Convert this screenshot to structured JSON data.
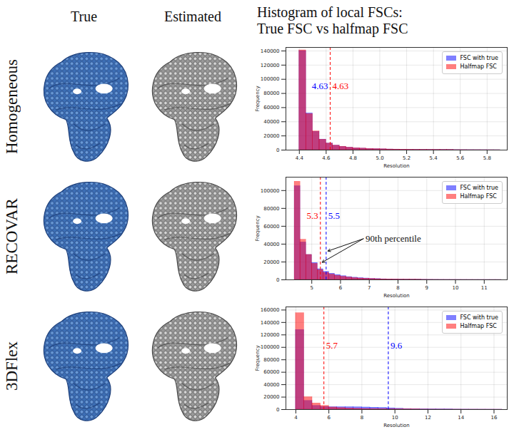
{
  "column_titles": [
    "True",
    "Estimated"
  ],
  "histogram_title": [
    "Histogram of local FSCs:",
    "True FSC vs halfmap FSC"
  ],
  "row_labels": [
    "Homogeneous",
    "RECOVAR",
    "3DFlex"
  ],
  "chart_data": [
    {
      "type": "histogram",
      "xlabel": "Resolution",
      "ylabel": "Frequency",
      "bins": [
        4.4,
        4.45,
        4.5,
        4.55,
        4.6,
        4.65,
        4.7,
        4.75,
        4.8,
        4.85,
        4.9,
        4.95,
        5.0,
        5.05,
        5.1,
        5.15,
        5.2,
        5.25,
        5.3,
        5.35,
        5.4,
        5.45,
        5.5,
        5.55,
        5.6,
        5.65,
        5.7,
        5.75,
        5.8,
        5.85,
        5.9
      ],
      "series": [
        {
          "name": "FSC with true",
          "color": "blue",
          "values": [
            140000,
            52000,
            26000,
            15000,
            9500,
            6500,
            4800,
            3600,
            2800,
            2200,
            1800,
            1500,
            1200,
            1000,
            850,
            700,
            600,
            500,
            420,
            360,
            300,
            250,
            210,
            170,
            140,
            110,
            90,
            70,
            50,
            30
          ]
        },
        {
          "name": "Halfmap FSC",
          "color": "red",
          "values": [
            141000,
            51000,
            26500,
            14800,
            9300,
            6400,
            4900,
            3600,
            2750,
            2250,
            1750,
            1500,
            1250,
            980,
            860,
            690,
            610,
            490,
            430,
            350,
            310,
            240,
            220,
            160,
            150,
            100,
            95,
            65,
            55,
            25
          ]
        }
      ],
      "percentile_lines": [
        {
          "series": "FSC with true",
          "value": 4.63
        },
        {
          "series": "Halfmap FSC",
          "value": 4.63
        }
      ],
      "xlim": [
        4.3,
        5.95
      ],
      "xticks": [
        4.4,
        4.6,
        4.8,
        {
          "value": 5,
          "label": "5.0"
        },
        5.2,
        5.4,
        5.6,
        5.8
      ],
      "ylim": [
        0,
        145000
      ],
      "yticks": [
        0,
        20000,
        40000,
        60000,
        80000,
        100000,
        120000,
        140000
      ],
      "grid": true,
      "legend": "upper right"
    },
    {
      "type": "histogram",
      "xlabel": "Resolution",
      "ylabel": "Frequency",
      "bins": [
        4.4,
        4.6,
        4.8,
        5.0,
        5.2,
        5.4,
        5.6,
        5.8,
        6.0,
        6.2,
        6.4,
        6.6,
        6.8,
        7.0,
        7.2,
        7.4,
        7.6,
        7.8,
        8.0,
        8.2,
        8.4,
        8.6,
        8.8,
        9.0,
        9.2,
        9.4,
        9.6,
        9.8,
        10.0,
        10.2,
        10.4,
        10.6,
        10.8,
        11.0,
        11.2,
        11.4,
        11.6
      ],
      "series": [
        {
          "name": "FSC with true",
          "color": "blue",
          "values": [
            105000,
            42000,
            28000,
            19000,
            12000,
            9000,
            7000,
            5500,
            4200,
            3200,
            2500,
            2000,
            1600,
            1200,
            950,
            750,
            600,
            480,
            380,
            300,
            240,
            190,
            150,
            120,
            90,
            70,
            55,
            45,
            35,
            28,
            22,
            17,
            12,
            9,
            6,
            4
          ]
        },
        {
          "name": "Halfmap FSC",
          "color": "red",
          "values": [
            110000,
            45000,
            28000,
            18000,
            11000,
            8000,
            6000,
            4500,
            3500,
            2700,
            2000,
            1600,
            1300,
            1000,
            800,
            650,
            500,
            400,
            300,
            250,
            200,
            160,
            130,
            100,
            80,
            60,
            50,
            40,
            30,
            25,
            20,
            15,
            10,
            8,
            5,
            3
          ]
        }
      ],
      "percentile_lines": [
        {
          "series": "FSC with true",
          "value": 5.5
        },
        {
          "series": "Halfmap FSC",
          "value": 5.3
        }
      ],
      "annotation": "90th percentile",
      "xlim": [
        4.1,
        11.8
      ],
      "xticks": [
        5,
        6,
        7,
        8,
        9,
        10,
        11
      ],
      "ylim": [
        0,
        115000
      ],
      "yticks": [
        0,
        20000,
        40000,
        60000,
        80000,
        100000
      ],
      "grid": true,
      "legend": "upper right"
    },
    {
      "type": "histogram",
      "xlabel": "Resolution",
      "ylabel": "Frequency",
      "bins": [
        4,
        4.5,
        5,
        5.5,
        6,
        6.5,
        7,
        7.5,
        8,
        8.5,
        9,
        9.5,
        10,
        10.5,
        11,
        11.5,
        12,
        12.5,
        13,
        13.5,
        14,
        14.5,
        15,
        15.5,
        16,
        16.5
      ],
      "series": [
        {
          "name": "FSC with true",
          "color": "blue",
          "values": [
            128000,
            14000,
            6000,
            4500,
            4000,
            4000,
            4000,
            3800,
            3500,
            3200,
            2800,
            2200,
            1500,
            1000,
            700,
            500,
            400,
            300,
            250,
            200,
            150,
            120,
            100,
            80,
            60
          ]
        },
        {
          "name": "Halfmap FSC",
          "color": "red",
          "values": [
            155000,
            20000,
            10000,
            6000,
            3500,
            2500,
            1800,
            1300,
            1000,
            800,
            600,
            500,
            400,
            300,
            250,
            200,
            150,
            120,
            100,
            80,
            60,
            50,
            40,
            30,
            20
          ]
        }
      ],
      "percentile_lines": [
        {
          "series": "FSC with true",
          "value": 9.6
        },
        {
          "series": "Halfmap FSC",
          "value": 5.7
        }
      ],
      "xlim": [
        3.4,
        16.8
      ],
      "xticks": [
        4,
        6,
        8,
        10,
        12,
        14,
        16
      ],
      "ylim": [
        0,
        165000
      ],
      "yticks": [
        0,
        20000,
        40000,
        60000,
        80000,
        100000,
        120000,
        140000,
        160000
      ],
      "grid": true,
      "legend": "upper right"
    }
  ]
}
